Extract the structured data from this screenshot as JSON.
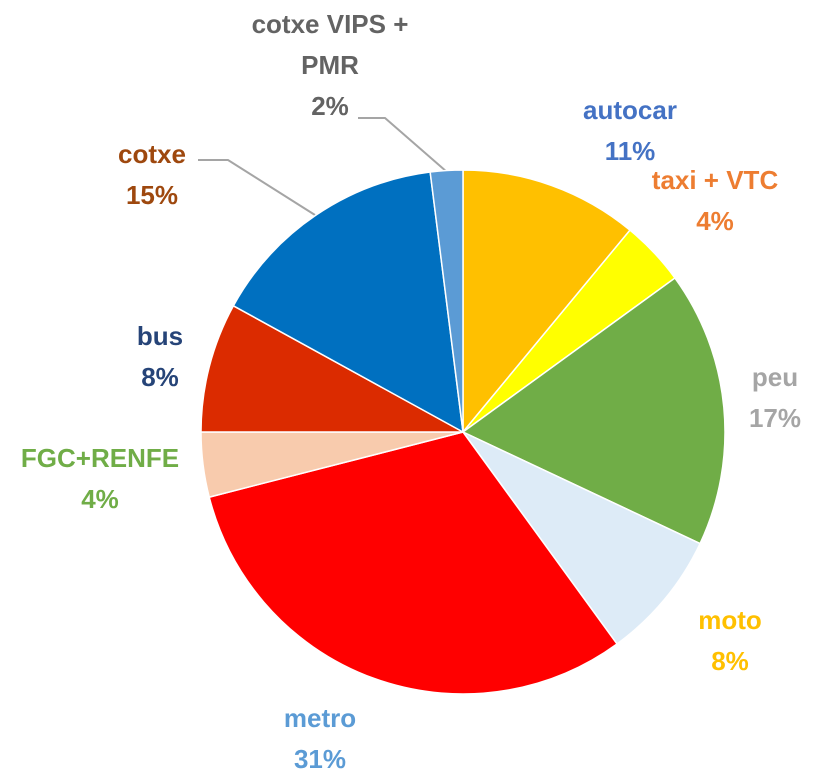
{
  "chart_data": {
    "type": "pie",
    "categories": [
      "autocar",
      "taxi + VTC",
      "peu",
      "moto",
      "metro",
      "FGC+RENFE",
      "bus",
      "cotxe",
      "cotxe VIPS + PMR"
    ],
    "values": [
      11,
      4,
      17,
      8,
      31,
      4,
      8,
      15,
      2
    ],
    "value_labels": [
      "11%",
      "4%",
      "17%",
      "8%",
      "31%",
      "4%",
      "8%",
      "15%",
      "2%"
    ],
    "colors": [
      "#FFC000",
      "#FFFF00",
      "#70AD47",
      "#DDEBF7",
      "#FF0000",
      "#F8CBAD",
      "#DB2B00",
      "#0070C0",
      "#5B9BD5"
    ],
    "label_colors": [
      "#4472C4",
      "#ED7D31",
      "#A5A5A5",
      "#FFC000",
      "#5B9BD5",
      "#70AD47",
      "#264478",
      "#9E480E",
      "#636363"
    ]
  }
}
